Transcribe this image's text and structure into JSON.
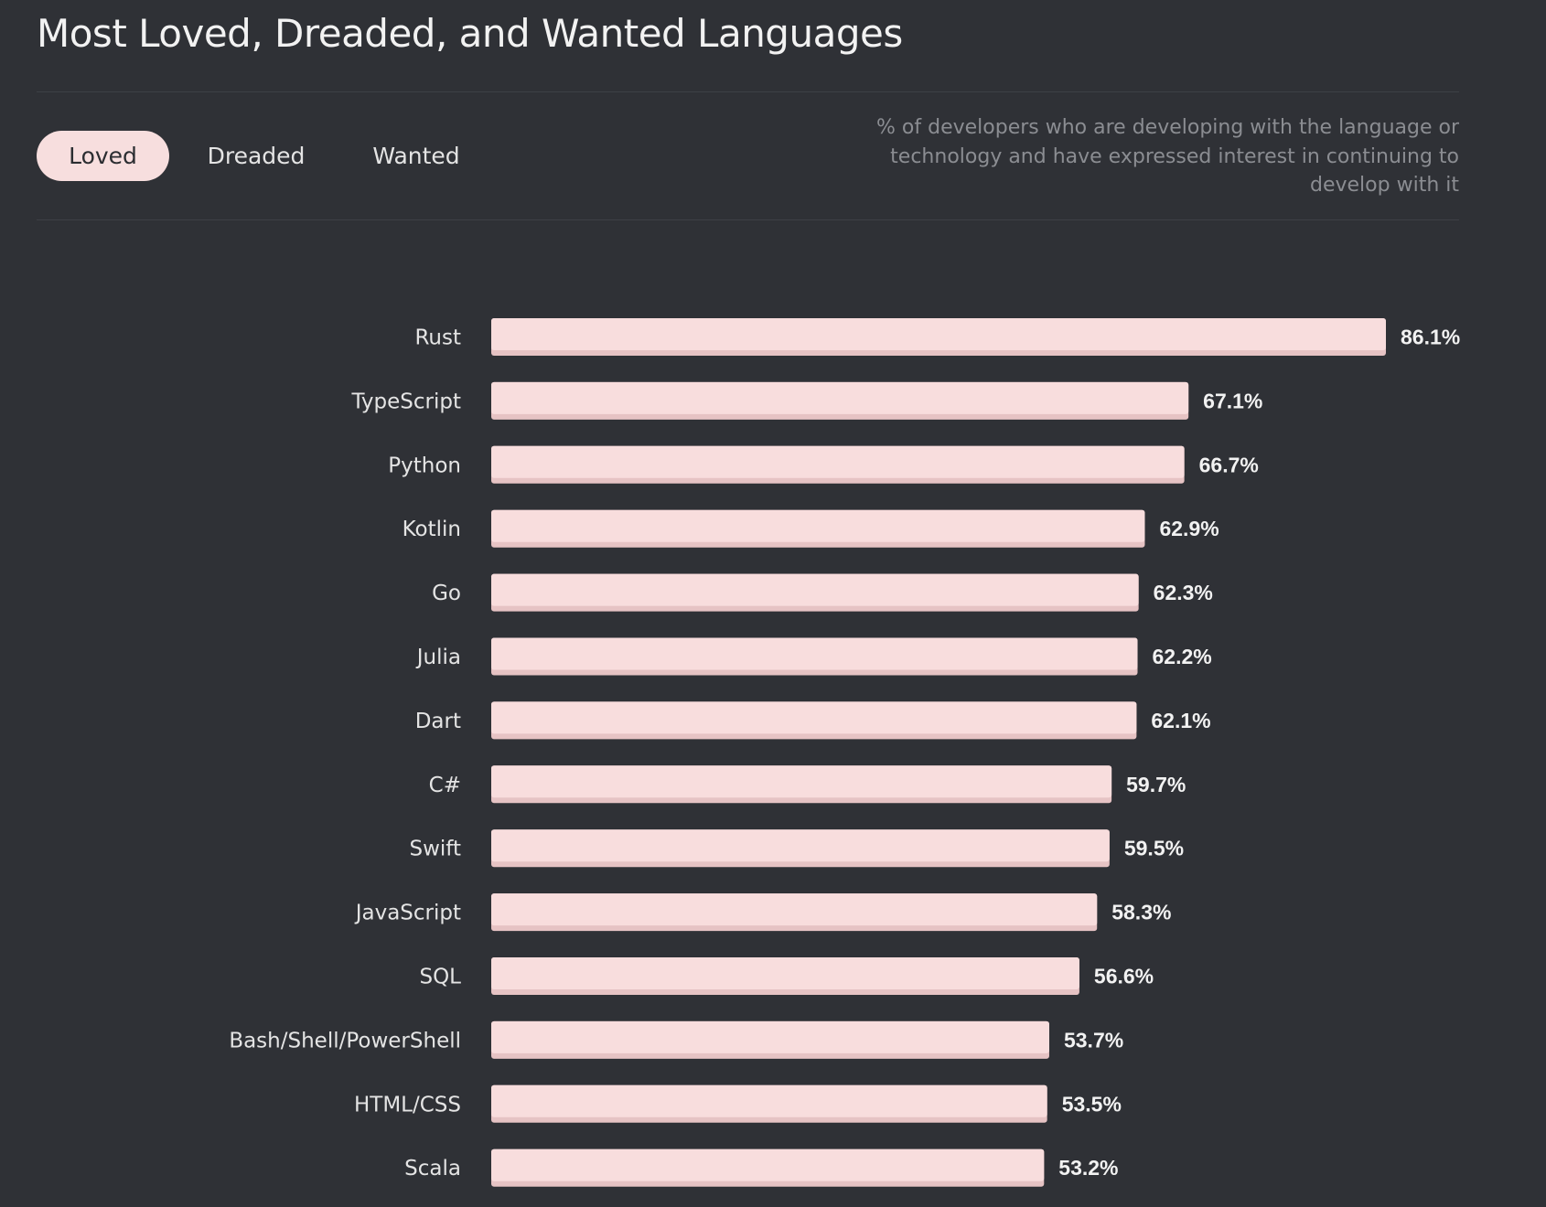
{
  "title": "Most Loved, Dreaded, and Wanted Languages",
  "tabs": [
    {
      "label": "Loved",
      "active": true
    },
    {
      "label": "Dreaded",
      "active": false
    },
    {
      "label": "Wanted",
      "active": false
    }
  ],
  "description": {
    "line1": "% of developers who are developing with the language or",
    "line2": "technology and have expressed interest in continuing to",
    "line3": "develop with it"
  },
  "colors": {
    "background": "#2f3136",
    "bar": "#f8dddd",
    "bar_shadow": "#e6c3c4",
    "active_tab": "#f7dede"
  },
  "chart_data": {
    "type": "bar",
    "orientation": "horizontal",
    "categories": [
      "Rust",
      "TypeScript",
      "Python",
      "Kotlin",
      "Go",
      "Julia",
      "Dart",
      "C#",
      "Swift",
      "JavaScript",
      "SQL",
      "Bash/Shell/PowerShell",
      "HTML/CSS",
      "Scala"
    ],
    "values": [
      86.1,
      67.1,
      66.7,
      62.9,
      62.3,
      62.2,
      62.1,
      59.7,
      59.5,
      58.3,
      56.6,
      53.7,
      53.5,
      53.2
    ],
    "value_labels": [
      "86.1%",
      "67.1%",
      "66.7%",
      "62.9%",
      "62.3%",
      "62.2%",
      "62.1%",
      "59.7%",
      "59.5%",
      "58.3%",
      "56.6%",
      "53.7%",
      "53.5%",
      "53.2%"
    ],
    "value_suffix": "%",
    "xlim": [
      0,
      86.1
    ],
    "grid": false,
    "legend": "none"
  }
}
